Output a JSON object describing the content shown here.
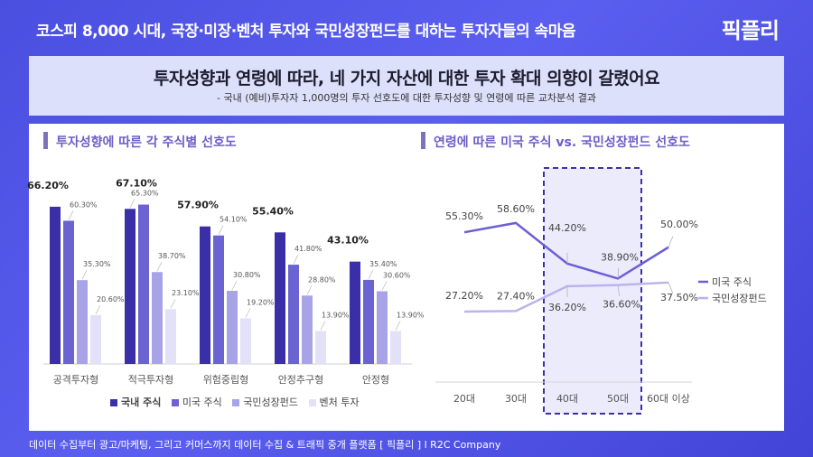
{
  "header": {
    "title": "코스피 8,000 시대, 국장·미장·벤처 투자와 국민성장펀드를 대하는 투자자들의 속마음",
    "logo": "픽플리"
  },
  "headline": {
    "title": "투자성향과 연령에 따라, 네 가지 자산에 대한 투자 확대 의향이 갈렸어요",
    "subtitle": "- 국내 (예비)투자자 1,000명의 투자 선호도에 대한 투자성향 및 연령에 따른 교차분석 결과"
  },
  "footer": {
    "text": "데이터 수집부터 광고/마케팅, 그리고 커머스까지 데이터 수집 & 트래픽 중개 플랫폼 [ 픽플리 ]  l  R2C Company"
  },
  "chart_data": [
    {
      "type": "bar",
      "title": "투자성향에 따른 각 주식별 선호도",
      "categories": [
        "공격투자형",
        "적극투자형",
        "위험중립형",
        "안정추구형",
        "안정형"
      ],
      "series": [
        {
          "name": "국내 주식",
          "values": [
            66.2,
            65.3,
            57.9,
            55.4,
            43.1
          ]
        },
        {
          "name": "미국 주식",
          "values": [
            60.3,
            67.1,
            54.1,
            41.8,
            35.4
          ]
        },
        {
          "name": "국민성장펀드",
          "values": [
            35.3,
            38.7,
            30.8,
            28.8,
            30.6
          ]
        },
        {
          "name": "벤처 투자",
          "values": [
            20.6,
            23.1,
            19.2,
            13.9,
            13.9
          ]
        }
      ],
      "labels": [
        [
          "66.20%",
          "60.30%",
          "35.30%",
          "20.60%"
        ],
        [
          "65.30%",
          "67.10%",
          "38.70%",
          "23.10%"
        ],
        [
          "57.90%",
          "54.10%",
          "30.80%",
          "19.20%"
        ],
        [
          "55.40%",
          "41.80%",
          "28.80%",
          "13.90%"
        ],
        [
          "43.10%",
          "35.40%",
          "30.60%",
          "13.90%"
        ]
      ],
      "highlight": [
        [
          0,
          0
        ],
        [
          1,
          1
        ],
        [
          2,
          0
        ],
        [
          3,
          0
        ],
        [
          4,
          0
        ]
      ],
      "colors": [
        "#3b2fa8",
        "#6a63d1",
        "#a8a3e6",
        "#e3e1f7"
      ],
      "ylim": [
        0,
        100
      ],
      "legend": "bottom"
    },
    {
      "type": "line",
      "title": "연령에 따른 미국 주식 vs. 국민성장펀드 선호도",
      "categories": [
        "20대",
        "30대",
        "40대",
        "50대",
        "60대 이상"
      ],
      "series": [
        {
          "name": "미국 주식",
          "values": [
            55.3,
            58.6,
            44.2,
            38.9,
            50.0
          ],
          "labels": [
            "55.30%",
            "58.60%",
            "44.20%",
            "38.90%",
            "50.00%"
          ],
          "color": "#6a5fd6"
        },
        {
          "name": "국민성장펀드",
          "values": [
            27.2,
            27.4,
            36.2,
            36.6,
            37.5
          ],
          "labels": [
            "27.20%",
            "27.40%",
            "36.20%",
            "36.60%",
            "37.50%"
          ],
          "color": "#b9b4ec"
        }
      ],
      "highlight_categories": [
        "40대",
        "50대"
      ],
      "ylim": [
        0,
        80
      ],
      "legend": "right"
    }
  ]
}
